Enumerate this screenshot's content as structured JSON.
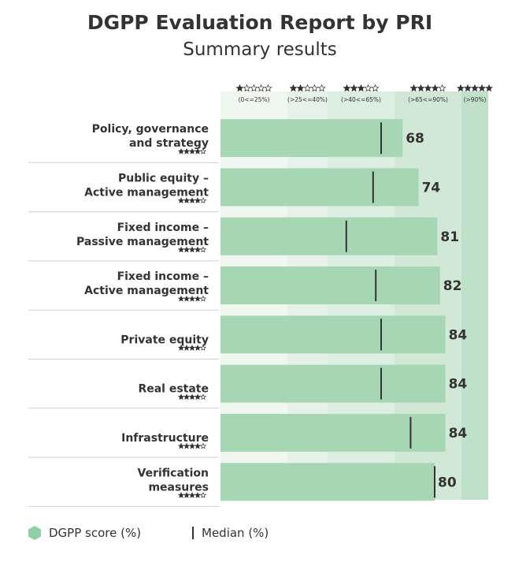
{
  "header": {
    "title": "DGPP Evaluation Report by PRI",
    "subtitle": "Summary results"
  },
  "legend": [
    {
      "label": "DGPP score (%)",
      "icon": "hexagon-icon",
      "color": "#a6d6b4"
    },
    {
      "label": "Median (%)",
      "icon": "median-line-icon",
      "color": "#333333"
    }
  ],
  "colors": {
    "bar": "#a6d6b4",
    "median": "#333333",
    "bands": [
      "#f0f7f1",
      "#e6f2e9",
      "#dcede1",
      "#d1e8d7",
      "#c0e0c9"
    ],
    "star_filled": "#333333",
    "star_empty": "#ffffff"
  },
  "chart_data": {
    "type": "bar",
    "orientation": "horizontal",
    "xlim": [
      0,
      100
    ],
    "rating_bands": [
      {
        "label": "(0<=25%)",
        "stars": 1,
        "from": 0,
        "to": 25
      },
      {
        "label": "(>25<=40%)",
        "stars": 2,
        "from": 25,
        "to": 40
      },
      {
        "label": "(>40<=65%)",
        "stars": 3,
        "from": 40,
        "to": 65
      },
      {
        "label": "(>65<=90%)",
        "stars": 4,
        "from": 65,
        "to": 90
      },
      {
        "label": "(>90%)",
        "stars": 5,
        "from": 90,
        "to": 100
      }
    ],
    "categories": [
      [
        "Policy, governance",
        "and strategy"
      ],
      [
        "Public equity –",
        "Active management"
      ],
      [
        "Fixed income –",
        "Passive management"
      ],
      [
        "Fixed income –",
        "Active management"
      ],
      [
        "Private equity"
      ],
      [
        "Real estate"
      ],
      [
        "Infrastructure"
      ],
      [
        "Verification",
        "measures"
      ]
    ],
    "category_stars": [
      4,
      4,
      4,
      4,
      4,
      4,
      4,
      4
    ],
    "series": [
      {
        "name": "DGPP score (%)",
        "values": [
          68,
          74,
          81,
          82,
          84,
          84,
          84,
          80
        ]
      },
      {
        "name": "Median (%)",
        "values": [
          60,
          57,
          47,
          58,
          60,
          60,
          71,
          80
        ]
      }
    ]
  }
}
